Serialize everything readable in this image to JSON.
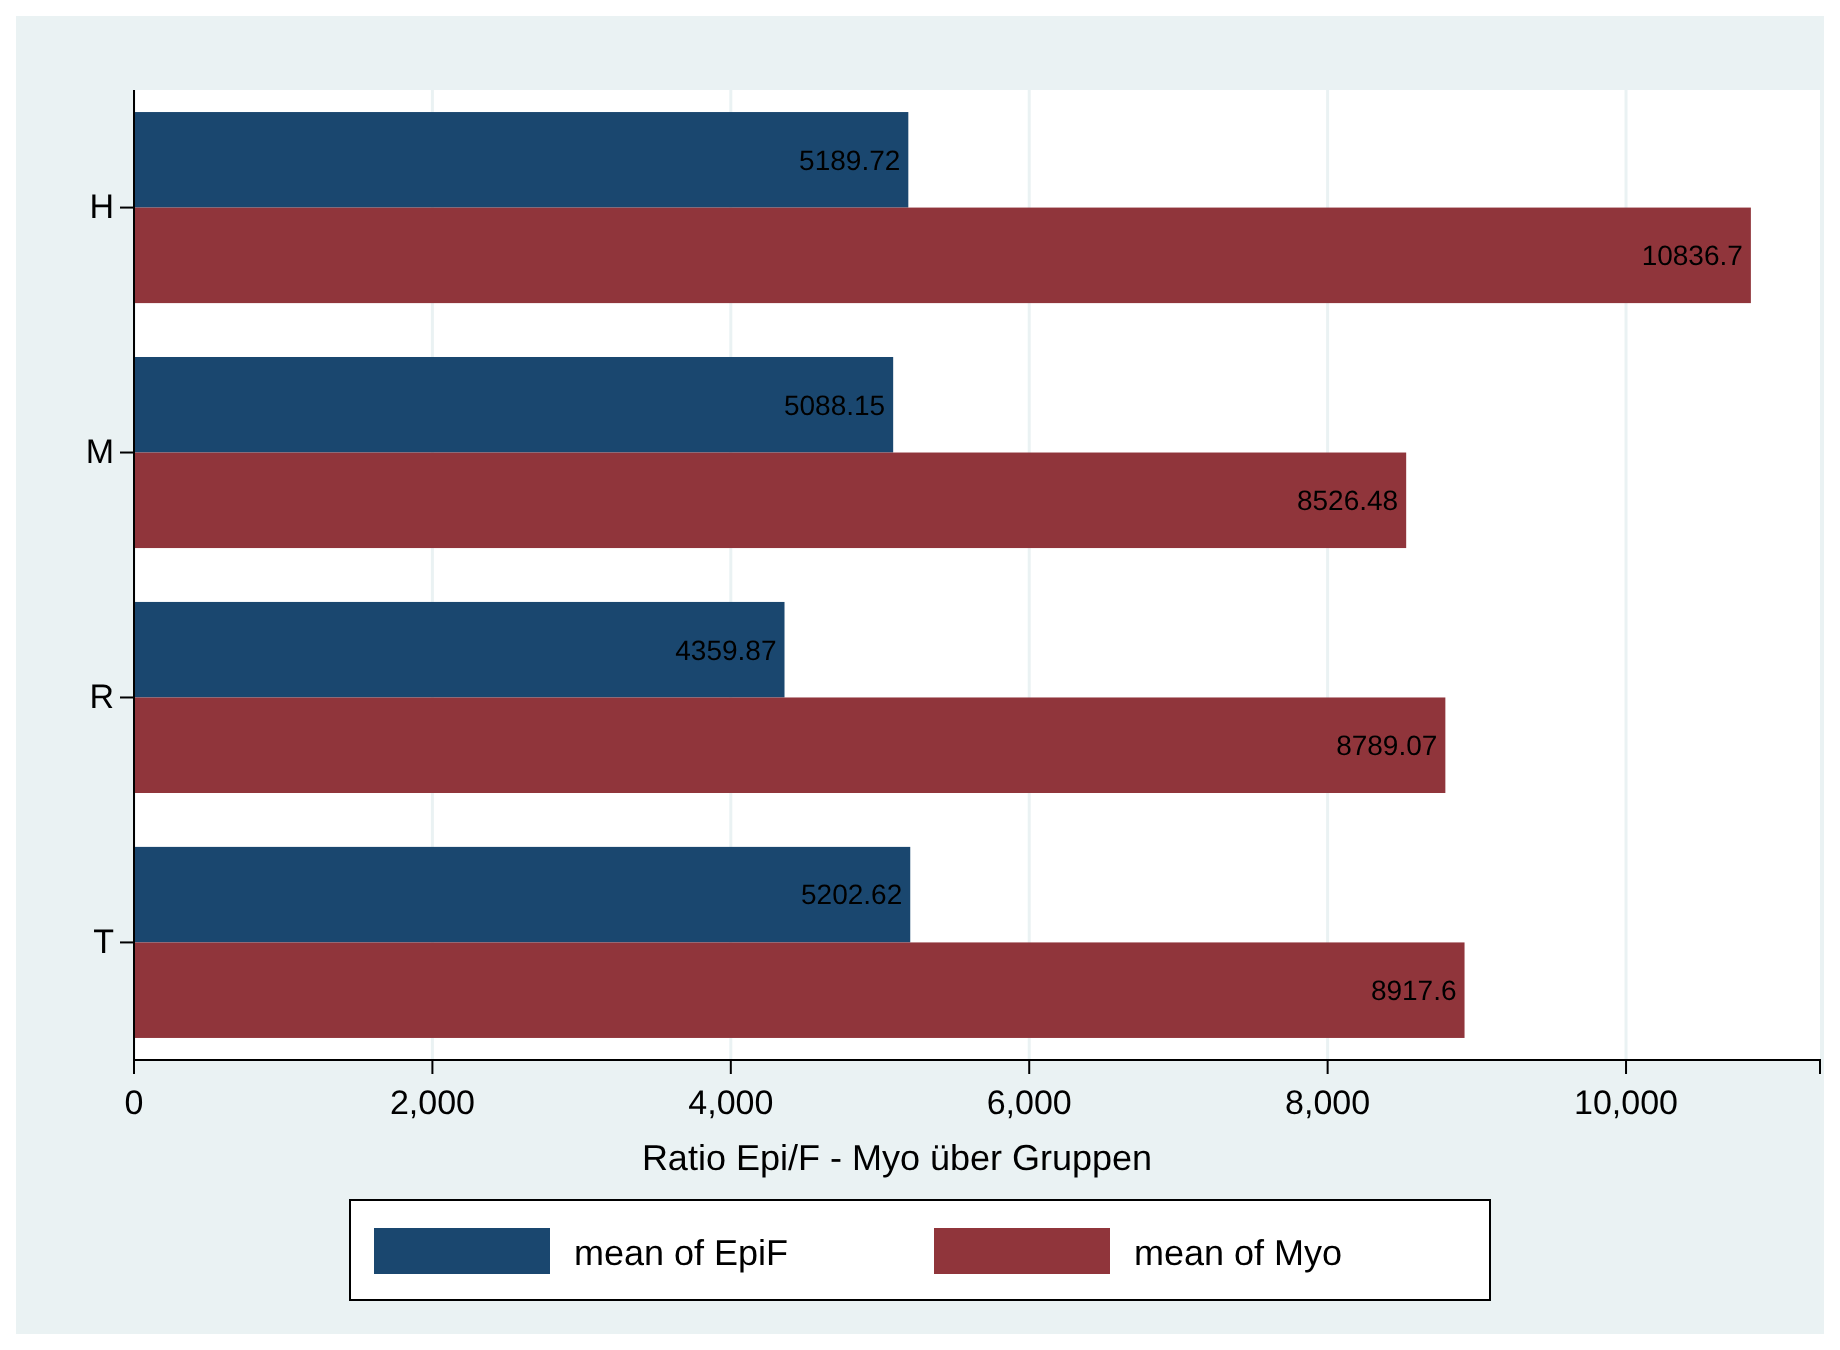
{
  "chart_data": {
    "type": "bar",
    "orientation": "horizontal",
    "categories": [
      "H",
      "M",
      "R",
      "T"
    ],
    "series": [
      {
        "name": "mean of EpiF",
        "color": "#1a476f",
        "values": [
          5189.72,
          5088.15,
          4359.87,
          5202.62
        ]
      },
      {
        "name": "mean of Myo",
        "color": "#90353b",
        "values": [
          10836.7,
          8526.48,
          8789.07,
          8917.6
        ]
      }
    ],
    "xlabel": "Ratio Epi/F - Myo über Gruppen",
    "xlim": [
      0,
      11300
    ],
    "xticks": [
      {
        "value": 0,
        "label": "0"
      },
      {
        "value": 2000,
        "label": "2,000"
      },
      {
        "value": 4000,
        "label": "4,000"
      },
      {
        "value": 6000,
        "label": "6,000"
      },
      {
        "value": 8000,
        "label": "8,000"
      },
      {
        "value": 10000,
        "label": "10,000"
      }
    ],
    "grid": "x",
    "legend": "bottom",
    "data_labels": true
  }
}
